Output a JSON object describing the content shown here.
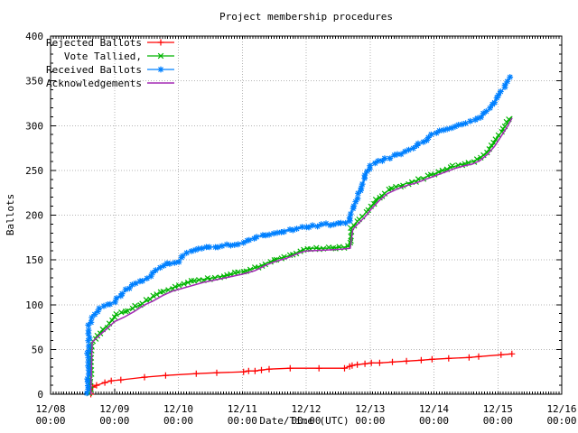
{
  "title": "Project membership procedures",
  "axes": {
    "xlabel": "Date/Time (UTC)",
    "ylabel": "Ballots",
    "x_tick_labels_line1": [
      "12/08",
      "12/09",
      "12/10",
      "12/11",
      "12/12",
      "12/13",
      "12/14",
      "12/15",
      "12/16"
    ],
    "x_tick_labels_line2": [
      "00:00",
      "00:00",
      "00:00",
      "00:00",
      "00:00",
      "00:00",
      "00:00",
      "00:00",
      "00:00"
    ],
    "y_tick_labels": [
      "0",
      "50",
      "100",
      "150",
      "200",
      "250",
      "300",
      "350",
      "400"
    ]
  },
  "colors": {
    "rejected": "#ff0000",
    "tallied": "#00b400",
    "received": "#0080ff",
    "acknowledgements": "#a428b4",
    "grid": "#b4b4b4",
    "border": "#000000",
    "background": "#ffffff"
  },
  "chart_data": {
    "type": "line",
    "title": "Project membership procedures",
    "xlabel": "Date/Time (UTC)",
    "ylabel": "Ballots",
    "x_unit": "days since 12/08 00:00 UTC",
    "xlim": [
      0,
      8
    ],
    "ylim": [
      0,
      400
    ],
    "x_major_tick_days": 1,
    "x_minor_tick_days": 0.0416667,
    "y_major_tick": 50,
    "y_minor_tick": 10,
    "grid": true,
    "legend_position": "top-left",
    "x_tick_labels": [
      [
        "12/08",
        "00:00"
      ],
      [
        "12/09",
        "00:00"
      ],
      [
        "12/10",
        "00:00"
      ],
      [
        "12/11",
        "00:00"
      ],
      [
        "12/12",
        "00:00"
      ],
      [
        "12/13",
        "00:00"
      ],
      [
        "12/14",
        "00:00"
      ],
      [
        "12/15",
        "00:00"
      ],
      [
        "12/16",
        "00:00"
      ]
    ],
    "y_ticks": [
      0,
      50,
      100,
      150,
      200,
      250,
      300,
      350,
      400
    ],
    "series": [
      {
        "name": "Rejected Ballots",
        "legend_label": "Rejected Ballots",
        "color": "#ff0000",
        "marker": "plus",
        "marker_mode": "points",
        "line_width": 1.3,
        "points": [
          [
            0.63,
            0
          ],
          [
            0.66,
            8
          ],
          [
            0.72,
            10
          ],
          [
            0.85,
            13
          ],
          [
            0.95,
            15
          ],
          [
            1.1,
            16
          ],
          [
            1.47,
            19
          ],
          [
            1.8,
            21
          ],
          [
            2.28,
            23
          ],
          [
            2.6,
            24
          ],
          [
            3.02,
            25
          ],
          [
            3.1,
            26
          ],
          [
            3.2,
            26
          ],
          [
            3.3,
            27
          ],
          [
            3.42,
            28
          ],
          [
            3.75,
            29
          ],
          [
            4.2,
            29
          ],
          [
            4.6,
            29
          ],
          [
            4.68,
            31
          ],
          [
            4.72,
            32
          ],
          [
            4.8,
            33
          ],
          [
            4.92,
            34
          ],
          [
            5.02,
            35
          ],
          [
            5.15,
            35
          ],
          [
            5.35,
            36
          ],
          [
            5.57,
            37
          ],
          [
            5.8,
            38
          ],
          [
            5.97,
            39
          ],
          [
            6.23,
            40
          ],
          [
            6.55,
            41
          ],
          [
            6.7,
            42
          ],
          [
            7.05,
            44
          ],
          [
            7.22,
            45
          ]
        ]
      },
      {
        "name": "Vote Tallied,",
        "legend_label": "Vote Tallied,",
        "color": "#00b400",
        "marker": "cross",
        "marker_mode": "dense",
        "marker_every_px": 4.5,
        "line_width": 1.3,
        "points": [
          [
            0.62,
            0
          ],
          [
            0.64,
            55
          ],
          [
            0.7,
            63
          ],
          [
            0.78,
            69
          ],
          [
            0.88,
            76
          ],
          [
            1.0,
            87
          ],
          [
            1.12,
            91
          ],
          [
            1.25,
            95
          ],
          [
            1.4,
            100
          ],
          [
            1.55,
            106
          ],
          [
            1.68,
            112
          ],
          [
            1.8,
            116
          ],
          [
            1.92,
            119
          ],
          [
            2.0,
            121
          ],
          [
            2.15,
            125
          ],
          [
            2.35,
            128
          ],
          [
            2.55,
            130
          ],
          [
            2.78,
            133
          ],
          [
            3.0,
            137
          ],
          [
            3.2,
            141
          ],
          [
            3.4,
            147
          ],
          [
            3.55,
            151
          ],
          [
            3.7,
            154
          ],
          [
            3.85,
            158
          ],
          [
            4.0,
            163
          ],
          [
            4.3,
            163
          ],
          [
            4.55,
            164
          ],
          [
            4.68,
            165
          ],
          [
            4.71,
            186
          ],
          [
            4.8,
            193
          ],
          [
            4.9,
            200
          ],
          [
            5.0,
            209
          ],
          [
            5.12,
            218
          ],
          [
            5.25,
            226
          ],
          [
            5.4,
            231
          ],
          [
            5.55,
            235
          ],
          [
            5.7,
            238
          ],
          [
            5.85,
            242
          ],
          [
            6.0,
            246
          ],
          [
            6.15,
            250
          ],
          [
            6.3,
            254
          ],
          [
            6.45,
            257
          ],
          [
            6.58,
            259
          ],
          [
            6.7,
            263
          ],
          [
            6.82,
            270
          ],
          [
            6.93,
            279
          ],
          [
            7.03,
            290
          ],
          [
            7.13,
            301
          ],
          [
            7.22,
            310
          ]
        ]
      },
      {
        "name": "Received Ballots",
        "legend_label": "Received Ballots",
        "color": "#0080ff",
        "marker": "star",
        "marker_mode": "dense",
        "marker_every_px": 4.5,
        "line_width": 1.3,
        "points": [
          [
            0.58,
            0
          ],
          [
            0.6,
            78
          ],
          [
            0.64,
            86
          ],
          [
            0.7,
            91
          ],
          [
            0.78,
            95
          ],
          [
            0.88,
            100
          ],
          [
            1.0,
            103
          ],
          [
            1.1,
            111
          ],
          [
            1.2,
            117
          ],
          [
            1.32,
            123
          ],
          [
            1.45,
            127
          ],
          [
            1.58,
            134
          ],
          [
            1.7,
            141
          ],
          [
            1.8,
            145
          ],
          [
            1.92,
            146
          ],
          [
            2.0,
            149
          ],
          [
            2.1,
            157
          ],
          [
            2.2,
            161
          ],
          [
            2.4,
            163
          ],
          [
            2.6,
            165
          ],
          [
            2.8,
            167
          ],
          [
            3.0,
            169
          ],
          [
            3.12,
            173
          ],
          [
            3.3,
            177
          ],
          [
            3.5,
            180
          ],
          [
            3.7,
            183
          ],
          [
            3.85,
            185
          ],
          [
            4.0,
            187
          ],
          [
            4.25,
            189
          ],
          [
            4.5,
            191
          ],
          [
            4.68,
            193
          ],
          [
            4.72,
            207
          ],
          [
            4.8,
            220
          ],
          [
            4.9,
            238
          ],
          [
            5.0,
            256
          ],
          [
            5.08,
            260
          ],
          [
            5.25,
            263
          ],
          [
            5.45,
            268
          ],
          [
            5.62,
            273
          ],
          [
            5.8,
            280
          ],
          [
            6.0,
            292
          ],
          [
            6.18,
            296
          ],
          [
            6.35,
            299
          ],
          [
            6.5,
            302
          ],
          [
            6.62,
            305
          ],
          [
            6.75,
            310
          ],
          [
            6.85,
            317
          ],
          [
            6.95,
            326
          ],
          [
            7.05,
            337
          ],
          [
            7.13,
            346
          ],
          [
            7.21,
            356
          ]
        ]
      },
      {
        "name": "Acknowledgements",
        "legend_label": "Acknowledgements",
        "color": "#a428b4",
        "marker": "none",
        "marker_mode": "none",
        "line_width": 1.5,
        "points": [
          [
            0.63,
            0
          ],
          [
            0.65,
            58
          ],
          [
            0.75,
            65
          ],
          [
            0.88,
            73
          ],
          [
            1.0,
            81
          ],
          [
            1.15,
            86
          ],
          [
            1.3,
            92
          ],
          [
            1.45,
            99
          ],
          [
            1.6,
            104
          ],
          [
            1.75,
            110
          ],
          [
            1.9,
            115
          ],
          [
            2.0,
            117
          ],
          [
            2.2,
            121
          ],
          [
            2.4,
            125
          ],
          [
            2.6,
            128
          ],
          [
            2.8,
            131
          ],
          [
            3.0,
            134
          ],
          [
            3.2,
            138
          ],
          [
            3.4,
            145
          ],
          [
            3.55,
            149
          ],
          [
            3.7,
            152
          ],
          [
            3.9,
            158
          ],
          [
            4.0,
            160
          ],
          [
            4.3,
            161
          ],
          [
            4.55,
            162
          ],
          [
            4.69,
            163
          ],
          [
            4.73,
            184
          ],
          [
            4.82,
            191
          ],
          [
            4.92,
            198
          ],
          [
            5.02,
            207
          ],
          [
            5.14,
            216
          ],
          [
            5.27,
            224
          ],
          [
            5.42,
            229
          ],
          [
            5.57,
            233
          ],
          [
            5.72,
            236
          ],
          [
            5.87,
            240
          ],
          [
            6.02,
            244
          ],
          [
            6.17,
            248
          ],
          [
            6.32,
            252
          ],
          [
            6.47,
            255
          ],
          [
            6.6,
            257
          ],
          [
            6.72,
            261
          ],
          [
            6.84,
            268
          ],
          [
            6.95,
            277
          ],
          [
            7.05,
            288
          ],
          [
            7.15,
            299
          ],
          [
            7.22,
            308
          ]
        ]
      }
    ]
  }
}
